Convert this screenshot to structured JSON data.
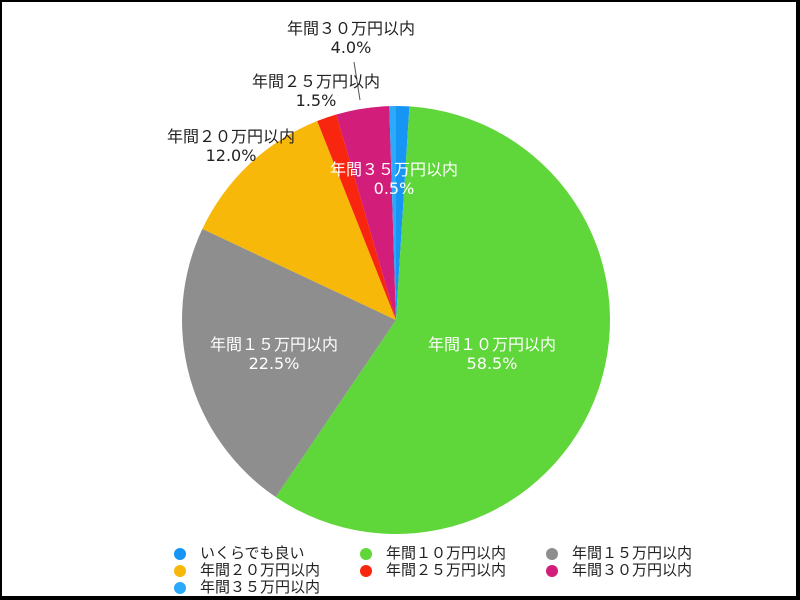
{
  "chart_data": {
    "type": "pie",
    "title": "",
    "start_angle_deg": 0,
    "direction": "clockwise",
    "slices": [
      {
        "label": "いくらでも良い",
        "value": 1.0,
        "pct_text": "",
        "color": "#1795f5",
        "label_pos": "none"
      },
      {
        "label": "年間１０万円以内",
        "value": 58.5,
        "pct_text": "58.5%",
        "color": "#5fd63a",
        "label_pos": "inside"
      },
      {
        "label": "年間１５万円以内",
        "value": 22.5,
        "pct_text": "22.5%",
        "color": "#8e8e8e",
        "label_pos": "inside"
      },
      {
        "label": "年間２０万円以内",
        "value": 12.0,
        "pct_text": "12.0%",
        "color": "#f8b80a",
        "label_pos": "outside"
      },
      {
        "label": "年間２５万円以内",
        "value": 1.5,
        "pct_text": "1.5%",
        "color": "#f8260e",
        "label_pos": "outside"
      },
      {
        "label": "年間３０万円以内",
        "value": 4.0,
        "pct_text": "4.0%",
        "color": "#d21d7a",
        "label_pos": "outside"
      },
      {
        "label": "年間３５万円以内",
        "value": 0.5,
        "pct_text": "0.5%",
        "color": "#2aaaf8",
        "label_pos": "inside"
      }
    ],
    "legend": {
      "position": "bottom",
      "entries": [
        "いくらでも良い",
        "年間１０万円以内",
        "年間１５万円以内",
        "年間２０万円以内",
        "年間２５万円以内",
        "年間３０万円以内",
        "年間３５万円以内"
      ]
    }
  },
  "labels": {
    "l10": {
      "name": "年間１０万円以内",
      "pct": "58.5%"
    },
    "l15": {
      "name": "年間１５万円以内",
      "pct": "22.5%"
    },
    "l20": {
      "name": "年間２０万円以内",
      "pct": "12.0%"
    },
    "l25": {
      "name": "年間２５万円以内",
      "pct": "1.5%"
    },
    "l30": {
      "name": "年間３０万円以内",
      "pct": "4.0%"
    },
    "l35": {
      "name": "年間３５万円以内",
      "pct": "0.5%"
    }
  },
  "legend": {
    "items": [
      {
        "label": "いくらでも良い",
        "color": "#1795f5"
      },
      {
        "label": "年間１０万円以内",
        "color": "#5fd63a"
      },
      {
        "label": "年間１５万円以内",
        "color": "#8e8e8e"
      },
      {
        "label": "年間２０万円以内",
        "color": "#f8b80a"
      },
      {
        "label": "年間２５万円以内",
        "color": "#f8260e"
      },
      {
        "label": "年間３０万円以内",
        "color": "#d21d7a"
      },
      {
        "label": "年間３５万円以内",
        "color": "#2aaaf8"
      }
    ]
  }
}
